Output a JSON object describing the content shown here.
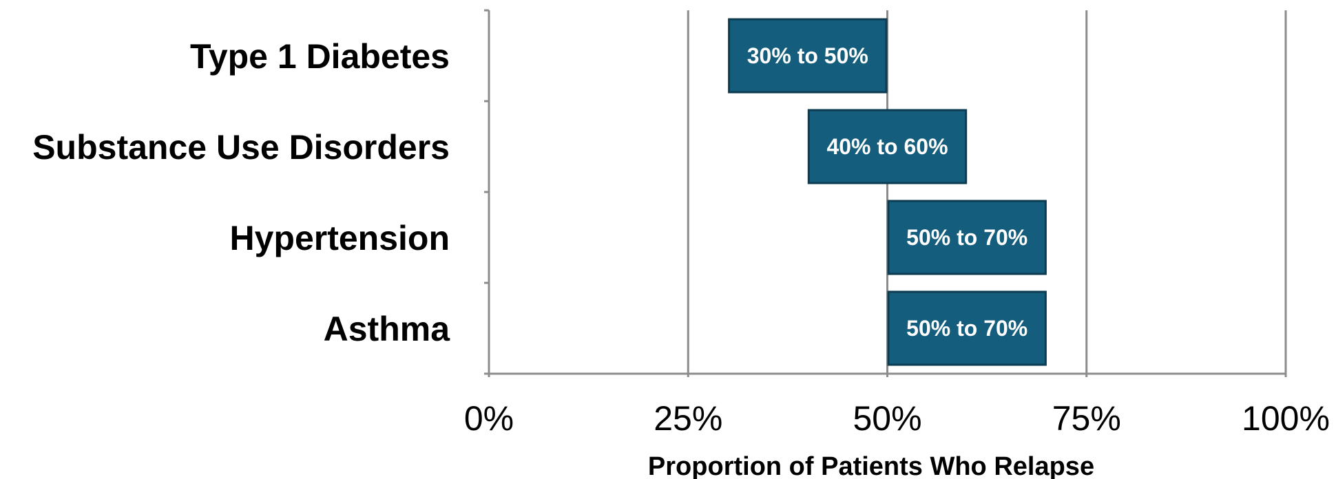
{
  "chart_data": {
    "type": "bar",
    "orientation": "horizontal",
    "categories": [
      "Type 1 Diabetes",
      "Substance Use Disorders",
      "Hypertension",
      "Asthma"
    ],
    "ranges": [
      {
        "category": "Type 1 Diabetes",
        "low": 30,
        "high": 50,
        "label": "30% to 50%"
      },
      {
        "category": "Substance Use Disorders",
        "low": 40,
        "high": 60,
        "label": "40% to 60%"
      },
      {
        "category": "Hypertension",
        "low": 50,
        "high": 70,
        "label": "50% to 70%"
      },
      {
        "category": "Asthma",
        "low": 50,
        "high": 70,
        "label": "50% to 70%"
      }
    ],
    "xlabel": "Proportion of Patients Who Relapse",
    "ylabel": "",
    "xlim": [
      0,
      100
    ],
    "xticks": [
      0,
      25,
      50,
      75,
      100
    ],
    "xtick_labels": [
      "0%",
      "25%",
      "50%",
      "75%",
      "100%"
    ],
    "grid": "vertical",
    "legend": "none",
    "colors": {
      "bar_fill": "#155d7c",
      "bar_edge": "#0d3c52",
      "grid": "#8c8c8c",
      "text": "#000000",
      "bar_text": "#ffffff"
    }
  }
}
